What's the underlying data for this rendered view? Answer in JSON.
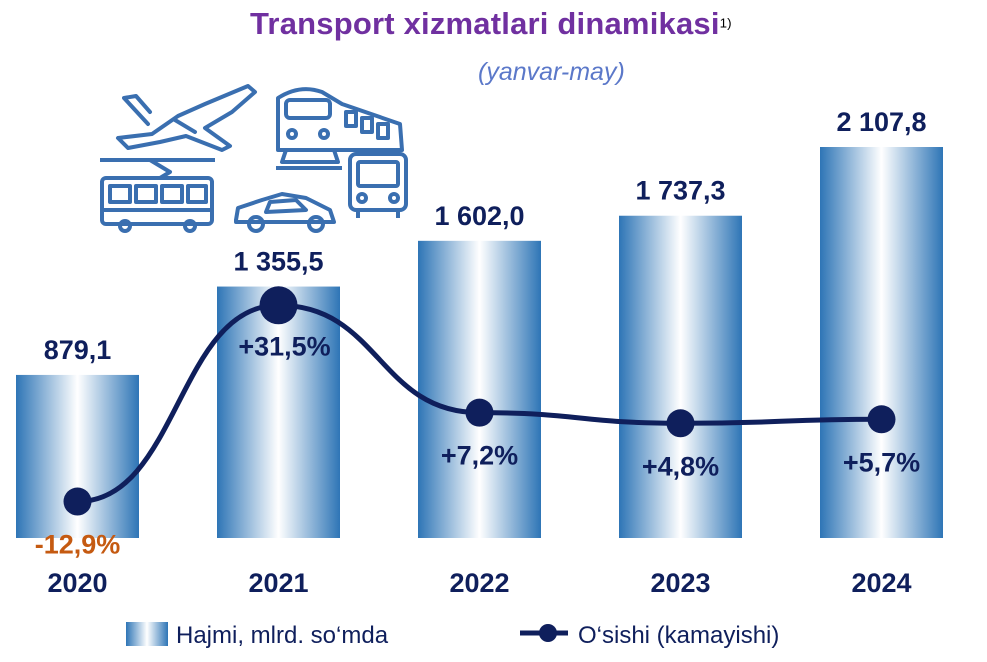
{
  "chart_data": {
    "type": "bar",
    "title": "Transport xizmatlari dinamikasi",
    "title_note": "1)",
    "subtitle": "(yanvar-may)",
    "categories": [
      "2020",
      "2021",
      "2022",
      "2023",
      "2024"
    ],
    "series": [
      {
        "name": "Hajmi, mlrd. so‘mda",
        "type": "bar",
        "values": [
          879.1,
          1355.5,
          1602.0,
          1737.3,
          2107.8
        ],
        "labels": [
          "879,1",
          "1 355,5",
          "1 602,0",
          "1 737,3",
          "2 107,8"
        ]
      },
      {
        "name": "O‘sishi (kamayishi)",
        "type": "line",
        "values": [
          -12.9,
          31.5,
          7.2,
          4.8,
          5.7
        ],
        "labels": [
          "-12,9%",
          "+31,5%",
          "+7,2%",
          "+4,8%",
          "+5,7%"
        ]
      }
    ],
    "colors": {
      "bar_dark": "#2e75b6",
      "bar_light": "#ffffff",
      "line": "#0f1f5c",
      "label": "#0f1f5c",
      "negative_label": "#c55a11",
      "title": "#7030a0",
      "subtitle": "#5b78c9",
      "icons": "#3a6fb0"
    },
    "grid": false,
    "legend": "bottom",
    "decorative_icons": [
      "airplane-icon",
      "train-icon",
      "tram-icon",
      "car-icon",
      "bus-icon"
    ]
  }
}
